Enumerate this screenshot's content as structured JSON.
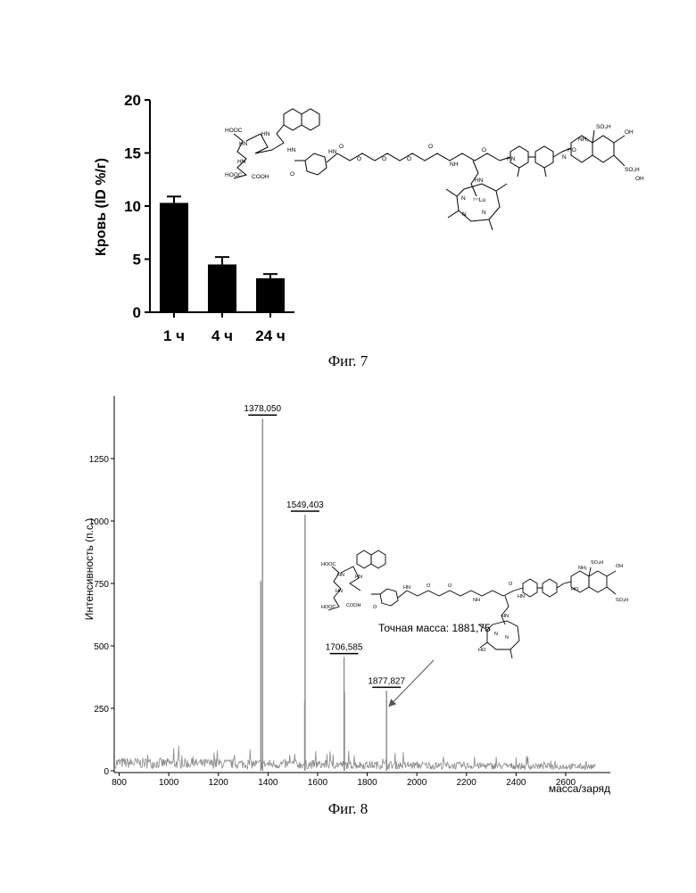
{
  "figures": {
    "fig7_caption": "Фиг. 7",
    "fig8_caption": "Фиг. 8"
  },
  "chart_data": [
    {
      "type": "bar",
      "title": "",
      "xlabel": "",
      "ylabel": "Кровь (ID %/г)",
      "categories": [
        "1 ч",
        "4 ч",
        "24 ч"
      ],
      "values": [
        10.3,
        4.5,
        3.2
      ],
      "errors": [
        0.6,
        0.7,
        0.4
      ],
      "ylim": [
        0,
        20
      ],
      "yticks": [
        "0",
        "5",
        "10",
        "15",
        "20"
      ],
      "grid": false,
      "legend": "none",
      "bar_color": "#000000",
      "structure_image": "chemical-structure-conjugate"
    },
    {
      "type": "line",
      "subtype": "mass-spectrum",
      "title": "",
      "xlabel": "масса/заряд",
      "ylabel": "Интенсивность (п.с.)",
      "xlim": [
        780,
        2780
      ],
      "ylim": [
        0,
        1500
      ],
      "xticks": [
        "800",
        "1000",
        "1200",
        "1400",
        "1600",
        "1800",
        "2000",
        "2200",
        "2400",
        "2600"
      ],
      "yticks": [
        "0",
        "250",
        "500",
        "750",
        "1000",
        "1250"
      ],
      "grid": false,
      "legend": "none",
      "line_color": "#8a8a8a",
      "noise_level": 45,
      "peaks": [
        {
          "x": 1371,
          "y": 760,
          "label": ""
        },
        {
          "x": 1378.05,
          "y": 1410,
          "label": "1378,050"
        },
        {
          "x": 1548,
          "y": 280,
          "label": ""
        },
        {
          "x": 1549.403,
          "y": 1025,
          "label": "1549,403"
        },
        {
          "x": 1706.585,
          "y": 455,
          "label": "1706,585"
        },
        {
          "x": 1708,
          "y": 315,
          "label": ""
        },
        {
          "x": 1877.827,
          "y": 320,
          "label": "1877,827"
        }
      ],
      "annotation": {
        "text": "Точная масса: 1881,75",
        "target_x": 1877.827,
        "target_y": 320
      },
      "structure_image": "chemical-structure-conjugate"
    }
  ]
}
